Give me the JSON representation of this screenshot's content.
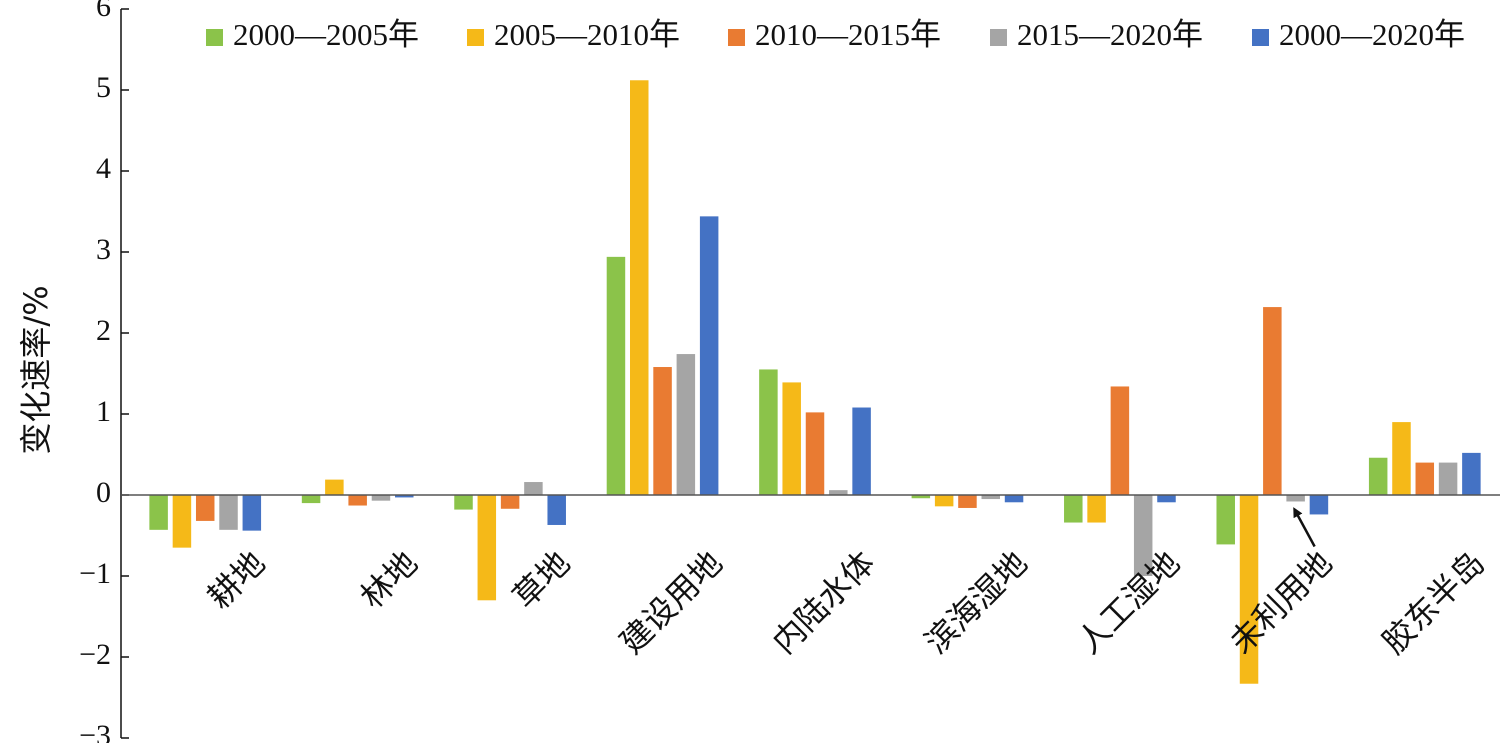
{
  "chart_data": {
    "type": "bar",
    "title": "",
    "xlabel": "",
    "ylabel": "变化速率/%",
    "ylim": [
      -3,
      6
    ],
    "yticks": [
      -3,
      -2,
      -1,
      0,
      1,
      2,
      3,
      4,
      5,
      6
    ],
    "ytick_labels": [
      "−3",
      "−2",
      "−1",
      "0",
      "1",
      "2",
      "3",
      "4",
      "5",
      "6"
    ],
    "grid": false,
    "legend_position": "top",
    "categories": [
      "耕地",
      "林地",
      "草地",
      "建设用地",
      "内陆水体",
      "滨海湿地",
      "人工湿地",
      "未利用地",
      "胶东半岛"
    ],
    "series": [
      {
        "name": "2000—2005年",
        "color": "#8BC34A",
        "values": [
          -0.43,
          -0.1,
          -0.18,
          2.94,
          1.55,
          -0.04,
          -0.34,
          -0.61,
          0.46
        ]
      },
      {
        "name": "2005—2010年",
        "color": "#F5B918",
        "values": [
          -0.65,
          0.19,
          -1.3,
          5.12,
          1.39,
          -0.14,
          -0.34,
          -2.33,
          0.9
        ]
      },
      {
        "name": "2010—2015年",
        "color": "#E97B32",
        "values": [
          -0.32,
          -0.13,
          -0.17,
          1.58,
          1.02,
          -0.16,
          1.34,
          2.32,
          0.4
        ]
      },
      {
        "name": "2015—2020年",
        "color": "#A5A5A5",
        "values": [
          -0.43,
          -0.07,
          0.16,
          1.74,
          0.06,
          -0.05,
          -1.0,
          -0.08,
          0.4
        ]
      },
      {
        "name": "2000—2020年",
        "color": "#4472C4",
        "values": [
          -0.44,
          -0.03,
          -0.37,
          3.44,
          1.08,
          -0.09,
          -0.09,
          -0.24,
          0.52
        ]
      }
    ],
    "annotation": {
      "type": "arrow",
      "category": "未利用地",
      "series": "2015—2020年"
    }
  }
}
